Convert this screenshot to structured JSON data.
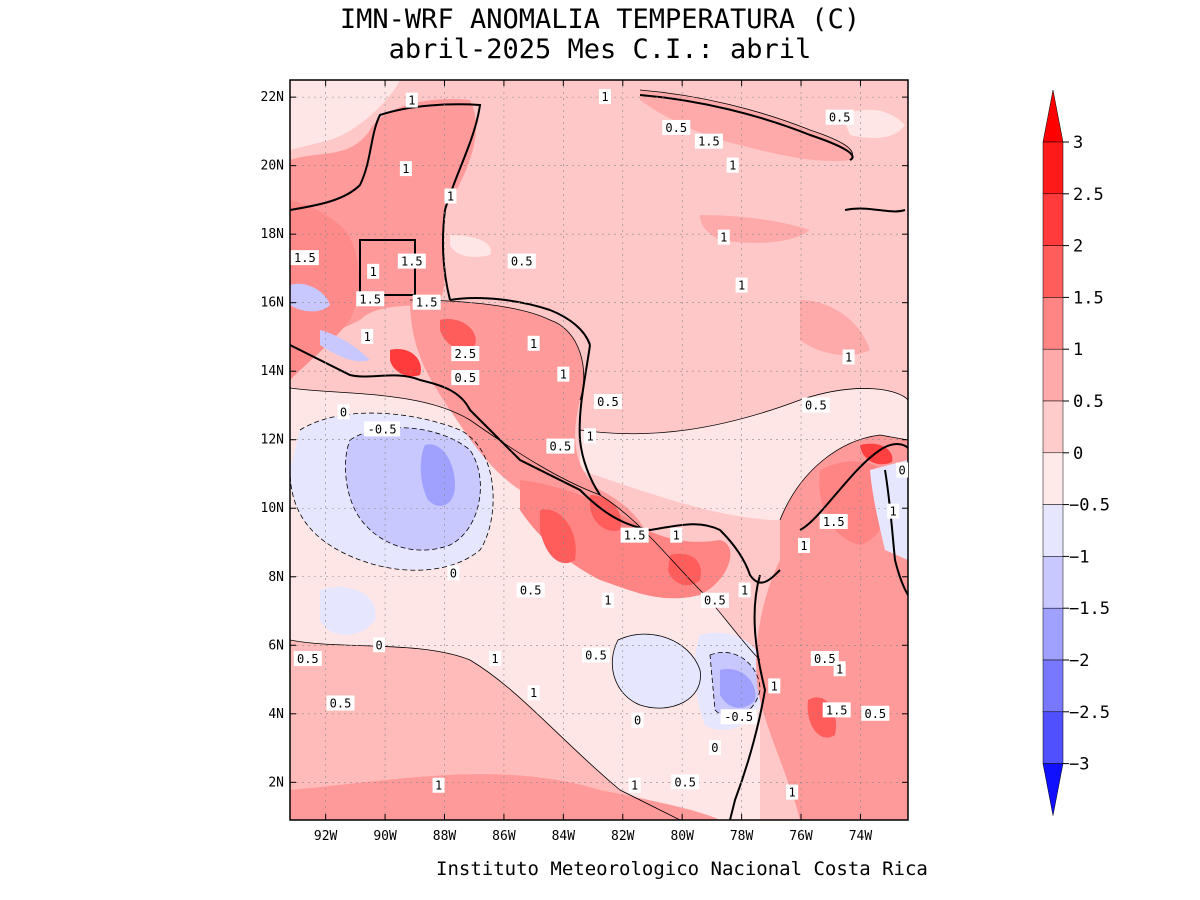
{
  "title_line1": "IMN-WRF  ANOMALIA TEMPERATURA (C)",
  "title_line2": "abril-2025 Mes C.I.: abril",
  "footer": "Instituto Meteorologico Nacional Costa Rica",
  "map": {
    "lon_range": [
      -93.2,
      -72.4
    ],
    "lat_range": [
      0.9,
      22.5
    ],
    "lat_ticks": [
      "22N",
      "20N",
      "18N",
      "16N",
      "14N",
      "12N",
      "10N",
      "8N",
      "6N",
      "4N",
      "2N"
    ],
    "lon_ticks": [
      "92W",
      "90W",
      "88W",
      "86W",
      "84W",
      "82W",
      "80W",
      "78W",
      "76W",
      "74W"
    ],
    "contour_labels": [
      {
        "text": "1",
        "lon": -89.1,
        "lat": 21.9
      },
      {
        "text": "1",
        "lon": -82.6,
        "lat": 22.0
      },
      {
        "text": "0.5",
        "lon": -74.7,
        "lat": 21.4
      },
      {
        "text": "0.5",
        "lon": -80.2,
        "lat": 21.1
      },
      {
        "text": "1.5",
        "lon": -79.1,
        "lat": 20.7
      },
      {
        "text": "1",
        "lon": -89.3,
        "lat": 19.9
      },
      {
        "text": "1",
        "lon": -87.8,
        "lat": 19.1
      },
      {
        "text": "1",
        "lon": -78.3,
        "lat": 20.0
      },
      {
        "text": "1",
        "lon": -78.6,
        "lat": 17.9
      },
      {
        "text": "1.5",
        "lon": -92.7,
        "lat": 17.3
      },
      {
        "text": "1",
        "lon": -90.4,
        "lat": 16.9
      },
      {
        "text": "1.5",
        "lon": -89.1,
        "lat": 17.2
      },
      {
        "text": "0.5",
        "lon": -85.4,
        "lat": 17.2
      },
      {
        "text": "1",
        "lon": -78.0,
        "lat": 16.5
      },
      {
        "text": "1.5",
        "lon": -90.5,
        "lat": 16.1
      },
      {
        "text": "1.5",
        "lon": -88.6,
        "lat": 16.0
      },
      {
        "text": "1",
        "lon": -90.6,
        "lat": 15.0
      },
      {
        "text": "1",
        "lon": -85.0,
        "lat": 14.8
      },
      {
        "text": "2.5",
        "lon": -87.3,
        "lat": 14.5
      },
      {
        "text": "1",
        "lon": -74.4,
        "lat": 14.4
      },
      {
        "text": "1",
        "lon": -84.0,
        "lat": 13.9
      },
      {
        "text": "0.5",
        "lon": -87.3,
        "lat": 13.8
      },
      {
        "text": "0",
        "lon": -91.4,
        "lat": 12.8
      },
      {
        "text": "-0.5",
        "lon": -90.1,
        "lat": 12.3
      },
      {
        "text": "0.5",
        "lon": -82.5,
        "lat": 13.1
      },
      {
        "text": "0.5",
        "lon": -75.5,
        "lat": 13.0
      },
      {
        "text": "1",
        "lon": -83.1,
        "lat": 12.1
      },
      {
        "text": "0.5",
        "lon": -84.1,
        "lat": 11.8
      },
      {
        "text": "0",
        "lon": -72.6,
        "lat": 11.1
      },
      {
        "text": "1.5",
        "lon": -74.9,
        "lat": 9.6
      },
      {
        "text": "1",
        "lon": -72.9,
        "lat": 9.9
      },
      {
        "text": "1.5",
        "lon": -81.6,
        "lat": 9.2
      },
      {
        "text": "1",
        "lon": -80.2,
        "lat": 9.2
      },
      {
        "text": "1",
        "lon": -75.9,
        "lat": 8.9
      },
      {
        "text": "0",
        "lon": -87.7,
        "lat": 8.1
      },
      {
        "text": "0.5",
        "lon": -85.1,
        "lat": 7.6
      },
      {
        "text": "1",
        "lon": -82.5,
        "lat": 7.3
      },
      {
        "text": "0.5",
        "lon": -78.9,
        "lat": 7.3
      },
      {
        "text": "1",
        "lon": -77.9,
        "lat": 7.6
      },
      {
        "text": "0",
        "lon": -90.2,
        "lat": 6.0
      },
      {
        "text": "0.5",
        "lon": -92.6,
        "lat": 5.6
      },
      {
        "text": "1",
        "lon": -86.3,
        "lat": 5.6
      },
      {
        "text": "0.5",
        "lon": -82.9,
        "lat": 5.7
      },
      {
        "text": "0.5",
        "lon": -75.2,
        "lat": 5.6
      },
      {
        "text": "1",
        "lon": -74.7,
        "lat": 5.3
      },
      {
        "text": "1",
        "lon": -85.0,
        "lat": 4.6
      },
      {
        "text": "1",
        "lon": -76.9,
        "lat": 4.8
      },
      {
        "text": "0.5",
        "lon": -91.5,
        "lat": 4.3
      },
      {
        "text": "1.5",
        "lon": -74.8,
        "lat": 4.1
      },
      {
        "text": "0.5",
        "lon": -73.5,
        "lat": 4.0
      },
      {
        "text": "-0.5",
        "lon": -78.1,
        "lat": 3.9
      },
      {
        "text": "0",
        "lon": -81.5,
        "lat": 3.8
      },
      {
        "text": "0",
        "lon": -78.9,
        "lat": 3.0
      },
      {
        "text": "1",
        "lon": -88.2,
        "lat": 1.9
      },
      {
        "text": "1",
        "lon": -81.6,
        "lat": 1.9
      },
      {
        "text": "0.5",
        "lon": -79.9,
        "lat": 2.0
      },
      {
        "text": "1",
        "lon": -76.3,
        "lat": 1.7
      }
    ]
  },
  "colorbar": {
    "labels": [
      "3",
      "2.5",
      "2",
      "1.5",
      "1",
      "0.5",
      "0",
      "-0.5",
      "-1",
      "-1.5",
      "-2",
      "-2.5",
      "-3"
    ],
    "colors": [
      "#ff0000",
      "#ff3333",
      "#ff5c5c",
      "#ff8585",
      "#ffaaaa",
      "#ffcccc",
      "#ffeaea",
      "#e6e6ff",
      "#c8c8ff",
      "#a0a0ff",
      "#7878ff",
      "#5050ff",
      "#2020ff"
    ],
    "top_arrow_color": "#ff0000",
    "bottom_arrow_color": "#1010ff"
  }
}
